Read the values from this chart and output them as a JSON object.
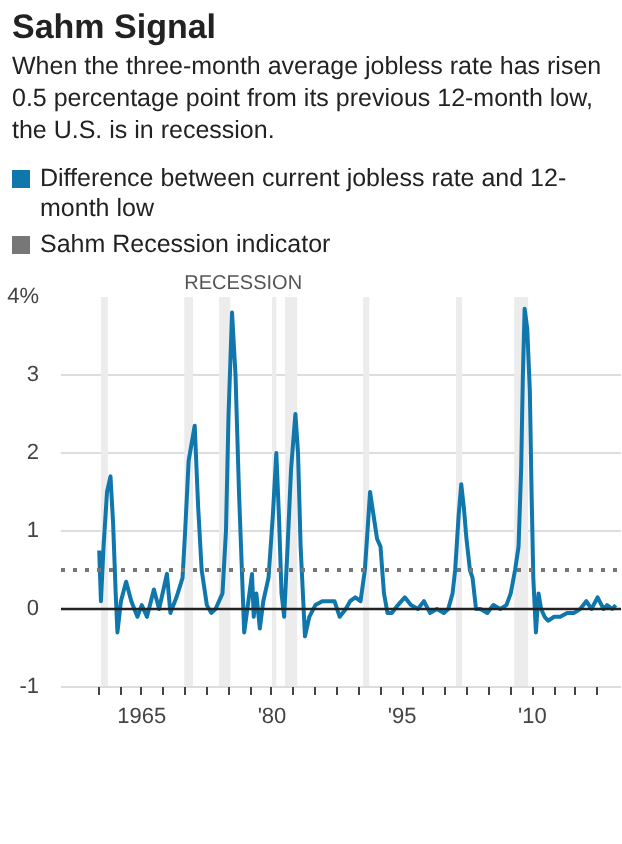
{
  "chart_data": {
    "type": "line",
    "title": "Sahm Signal",
    "subtitle": "When the three-month average jobless rate has risen 0.5 percentage point from its previous 12-month low, the U.S. is in recession.",
    "x": [
      1960.1,
      1960.3,
      1960.6,
      1961.0,
      1961.4,
      1961.7,
      1962.0,
      1962.2,
      1962.6,
      1963.2,
      1963.8,
      1964.5,
      1965.0,
      1965.6,
      1966.4,
      1967.0,
      1967.9,
      1968.3,
      1969.0,
      1969.7,
      1970.0,
      1970.4,
      1971.1,
      1971.5,
      1971.9,
      1972.5,
      1973.0,
      1973.5,
      1974.3,
      1974.7,
      1975.0,
      1975.4,
      1975.8,
      1976.2,
      1976.5,
      1976.8,
      1977.7,
      1977.9,
      1978.2,
      1978.6,
      1979.0,
      1979.6,
      1980.1,
      1980.5,
      1980.8,
      1981.1,
      1981.4,
      1981.8,
      1982.2,
      1982.7,
      1983.0,
      1983.3,
      1983.8,
      1984.3,
      1985.0,
      1985.8,
      1986.5,
      1987.2,
      1987.8,
      1988.5,
      1989.0,
      1989.6,
      1990.2,
      1990.7,
      1991.0,
      1991.3,
      1991.7,
      1992.1,
      1992.5,
      1992.9,
      1993.3,
      1993.8,
      1994.5,
      1995.3,
      1996.0,
      1996.8,
      1997.5,
      1998.2,
      1999.0,
      1999.8,
      2000.3,
      2000.8,
      2001.1,
      2001.5,
      2001.8,
      2002.1,
      2002.4,
      2002.8,
      2003.1,
      2003.5,
      2004.0,
      2004.8,
      2005.5,
      2006.3,
      2007.0,
      2007.5,
      2008.0,
      2008.4,
      2008.7,
      2008.9,
      2009.1,
      2009.4,
      2009.7,
      2009.9,
      2010.1,
      2010.4,
      2010.7,
      2011.0,
      2011.4,
      2011.8,
      2012.5,
      2013.2,
      2014.0,
      2014.8,
      2015.5,
      2016.2,
      2016.8,
      2017.5,
      2018.2,
      2018.6,
      2019.2,
      2019.6
    ],
    "series": [
      {
        "name": "Difference between current jobless rate and 12-month low",
        "color": "#1077ad",
        "values": [
          0.75,
          0.1,
          0.8,
          1.5,
          1.7,
          1.1,
          0.2,
          -0.3,
          0.1,
          0.35,
          0.1,
          -0.1,
          0.05,
          -0.1,
          0.25,
          0.0,
          0.45,
          -0.05,
          0.15,
          0.4,
          1.0,
          1.9,
          2.35,
          1.3,
          0.5,
          0.05,
          -0.05,
          0.0,
          0.2,
          1.0,
          2.5,
          3.8,
          3.0,
          1.5,
          0.6,
          -0.3,
          0.45,
          -0.1,
          0.2,
          -0.25,
          0.1,
          0.4,
          1.2,
          2.0,
          1.2,
          0.2,
          -0.1,
          0.8,
          1.8,
          2.5,
          2.0,
          0.8,
          -0.35,
          -0.1,
          0.05,
          0.1,
          0.1,
          0.1,
          -0.1,
          0.0,
          0.1,
          0.15,
          0.1,
          0.5,
          1.0,
          1.5,
          1.2,
          0.9,
          0.8,
          0.2,
          -0.05,
          -0.05,
          0.05,
          0.15,
          0.05,
          0.0,
          0.1,
          -0.05,
          0.0,
          -0.05,
          0.0,
          0.2,
          0.5,
          1.2,
          1.6,
          1.3,
          0.9,
          0.5,
          0.4,
          0.0,
          0.0,
          -0.05,
          0.05,
          0.0,
          0.05,
          0.2,
          0.5,
          0.8,
          1.8,
          3.0,
          3.85,
          3.6,
          2.8,
          1.5,
          0.4,
          -0.3,
          0.2,
          0.0,
          -0.1,
          -0.15,
          -0.1,
          -0.1,
          -0.05,
          -0.05,
          0.0,
          0.1,
          0.0,
          0.15,
          0.0,
          0.05,
          0.0,
          0.05
        ]
      }
    ],
    "ref_lines": [
      {
        "axis": "y",
        "value": 0.5,
        "label": "Sahm Recession indicator",
        "color": "#777777",
        "line_style": "dotted"
      },
      {
        "axis": "y",
        "value": 0,
        "color": "#222222",
        "line_style": "solid"
      }
    ],
    "bands": [
      {
        "axis": "x",
        "from": 1960.3,
        "to": 1961.1,
        "color": "#ececec"
      },
      {
        "axis": "x",
        "from": 1969.9,
        "to": 1970.9,
        "color": "#ececec",
        "label": "RECESSION"
      },
      {
        "axis": "x",
        "from": 1973.9,
        "to": 1975.2,
        "color": "#ececec"
      },
      {
        "axis": "x",
        "from": 1980.0,
        "to": 1980.5,
        "color": "#ececec"
      },
      {
        "axis": "x",
        "from": 1981.5,
        "to": 1982.9,
        "color": "#ececec"
      },
      {
        "axis": "x",
        "from": 1990.5,
        "to": 1991.2,
        "color": "#ececec"
      },
      {
        "axis": "x",
        "from": 2001.2,
        "to": 2001.9,
        "color": "#ececec"
      },
      {
        "axis": "x",
        "from": 2007.9,
        "to": 2009.5,
        "color": "#ececec"
      }
    ],
    "xlim": [
      1955.7,
      2020.2
    ],
    "ylim": [
      -1,
      4
    ],
    "xticks": [
      {
        "value": 1960,
        "label": null
      },
      {
        "value": 1962.5,
        "label": null
      },
      {
        "value": 1965,
        "label": "1965"
      },
      {
        "value": 1967.5,
        "label": null
      },
      {
        "value": 1970,
        "label": null
      },
      {
        "value": 1972.5,
        "label": null
      },
      {
        "value": 1975,
        "label": null
      },
      {
        "value": 1977.5,
        "label": null
      },
      {
        "value": 1980,
        "label": "'80"
      },
      {
        "value": 1982.5,
        "label": null
      },
      {
        "value": 1985,
        "label": null
      },
      {
        "value": 1987.5,
        "label": null
      },
      {
        "value": 1990,
        "label": null
      },
      {
        "value": 1992.5,
        "label": null
      },
      {
        "value": 1995,
        "label": "'95"
      },
      {
        "value": 1997.5,
        "label": null
      },
      {
        "value": 2000,
        "label": null
      },
      {
        "value": 2002.5,
        "label": null
      },
      {
        "value": 2005,
        "label": null
      },
      {
        "value": 2007.5,
        "label": null
      },
      {
        "value": 2010,
        "label": "'10"
      },
      {
        "value": 2012.5,
        "label": null
      },
      {
        "value": 2015,
        "label": null
      },
      {
        "value": 2017.5,
        "label": null
      }
    ],
    "yticks": [
      -1,
      0,
      1,
      2,
      3,
      {
        "value": 4,
        "label": "4%"
      }
    ],
    "grid": "y",
    "legend": "top",
    "line_style": "solid",
    "marker": "none"
  }
}
